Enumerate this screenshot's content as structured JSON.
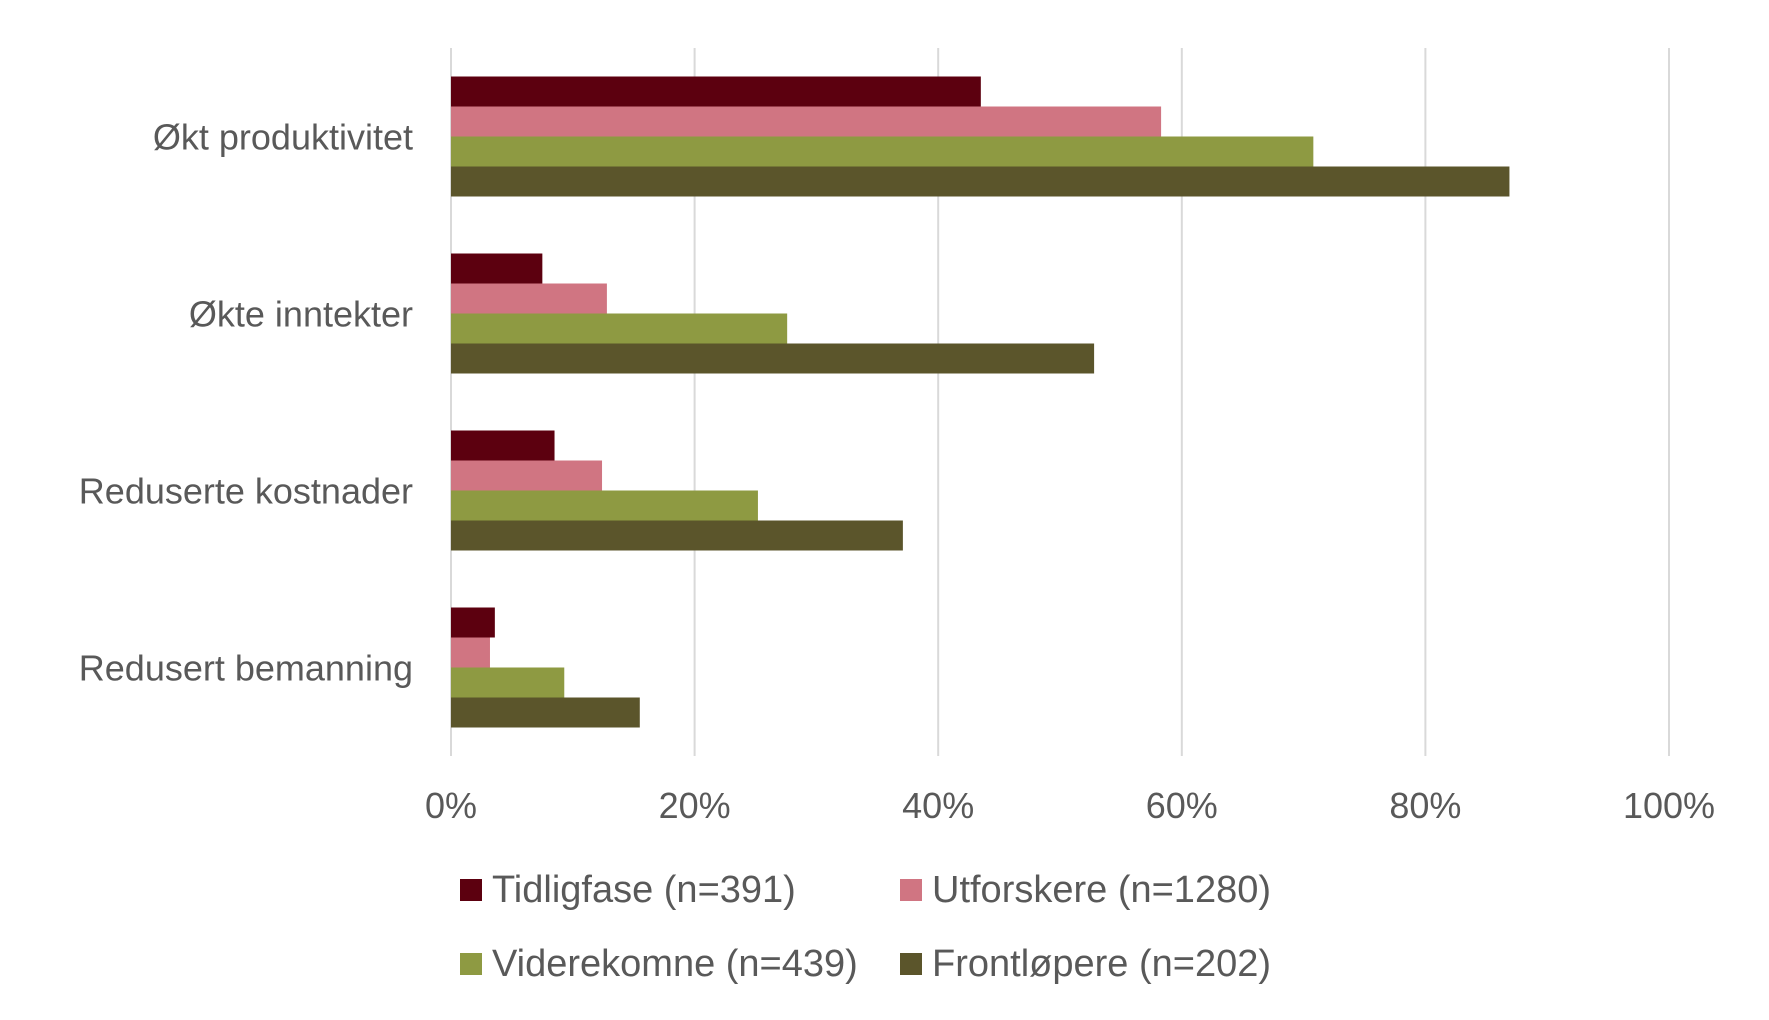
{
  "chart_data": {
    "type": "bar",
    "orientation": "horizontal",
    "categories": [
      "Økt produktivitet",
      "Økte inntekter",
      "Reduserte kostnader",
      "Redusert bemanning"
    ],
    "series": [
      {
        "name": "Tidligfase (n=391)",
        "color": "#5c000f",
        "values": [
          43.5,
          7.5,
          8.5,
          3.6
        ]
      },
      {
        "name": "Utforskere (n=1280)",
        "color": "#d07582",
        "values": [
          58.3,
          12.8,
          12.4,
          3.2
        ]
      },
      {
        "name": "Viderekomne (n=439)",
        "color": "#8e9a42",
        "values": [
          70.8,
          27.6,
          25.2,
          9.3
        ]
      },
      {
        "name": "Frontløpere (n=202)",
        "color": "#5b552b",
        "values": [
          86.9,
          52.8,
          37.1,
          15.5
        ]
      }
    ],
    "xlim": [
      0,
      100
    ],
    "x_ticks": [
      "0%",
      "20%",
      "40%",
      "60%",
      "80%",
      "100%"
    ],
    "grid": "vertical",
    "legend_position": "bottom"
  }
}
